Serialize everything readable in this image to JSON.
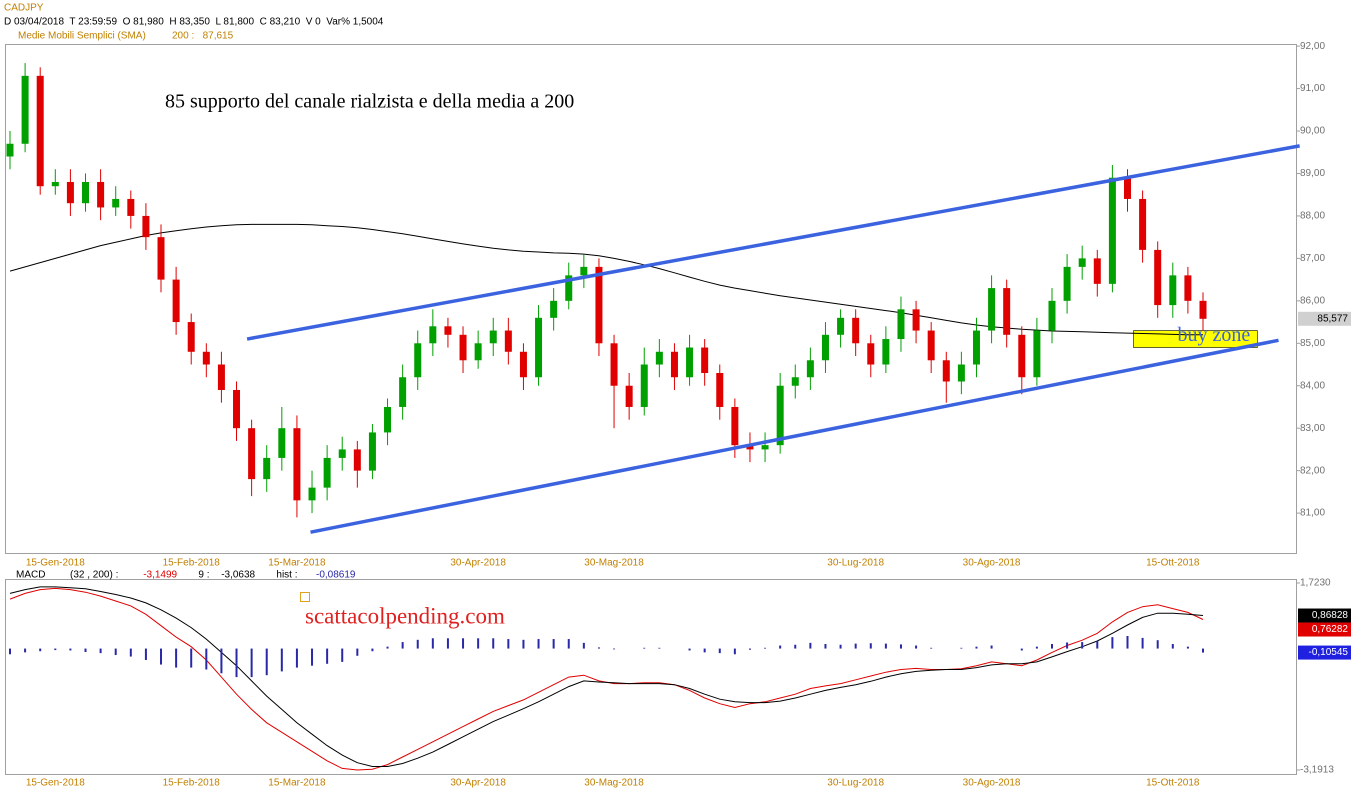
{
  "chart_data": [
    {
      "type": "candlestick",
      "symbol": "CADJPY",
      "info": "D 03/04/2018  T 23:59:59  O 81,980  H 83,350  L 81,800  C 83,210  V 0  Var% 1,5004",
      "annotation": "85 supporto del canale rialzista e della media a 200",
      "watermark": "scattacolpending.com",
      "categories": [
        null,
        null,
        null,
        "15-Gen-2018",
        null,
        null,
        null,
        null,
        null,
        null,
        null,
        null,
        "15-Feb-2018",
        null,
        null,
        null,
        null,
        null,
        null,
        "15-Mar-2018",
        null,
        null,
        null,
        null,
        null,
        null,
        null,
        null,
        null,
        null,
        null,
        "30-Apr-2018",
        null,
        null,
        null,
        null,
        null,
        null,
        null,
        null,
        "30-Mag-2018",
        null,
        null,
        null,
        null,
        null,
        null,
        null,
        null,
        null,
        null,
        null,
        null,
        null,
        null,
        null,
        "30-Lug-2018",
        null,
        null,
        null,
        null,
        null,
        null,
        null,
        null,
        "30-Ago-2018",
        null,
        null,
        null,
        null,
        null,
        null,
        null,
        null,
        null,
        null,
        null,
        "15-Ott-2018",
        null,
        null
      ],
      "open": [
        89.4,
        89.7,
        91.3,
        88.7,
        88.8,
        88.3,
        88.8,
        88.2,
        88.4,
        88.0,
        87.5,
        86.5,
        85.5,
        84.8,
        84.5,
        83.9,
        83.0,
        81.8,
        82.3,
        83.0,
        81.3,
        81.6,
        82.3,
        82.5,
        82.0,
        82.9,
        83.5,
        84.2,
        85.0,
        85.4,
        85.2,
        84.6,
        85.0,
        85.3,
        84.8,
        84.2,
        85.6,
        86.0,
        86.6,
        86.8,
        85.0,
        84.0,
        83.5,
        84.5,
        84.8,
        84.2,
        84.9,
        84.3,
        83.5,
        82.6,
        82.5,
        82.6,
        84.0,
        84.2,
        84.6,
        85.2,
        85.6,
        85.0,
        84.5,
        85.1,
        85.8,
        85.3,
        84.6,
        84.1,
        84.5,
        85.3,
        86.3,
        85.2,
        84.2,
        85.3,
        86.0,
        86.8,
        87.0,
        86.4,
        88.9,
        88.4,
        87.2,
        85.9,
        86.6,
        86.0
      ],
      "high": [
        90.0,
        91.6,
        91.5,
        89.1,
        89.1,
        89.0,
        89.1,
        88.7,
        88.6,
        88.3,
        87.8,
        86.8,
        85.7,
        85.0,
        84.8,
        84.1,
        83.2,
        82.6,
        83.5,
        83.3,
        82.0,
        82.6,
        82.8,
        82.7,
        83.1,
        83.7,
        84.5,
        85.3,
        85.8,
        85.6,
        85.4,
        85.3,
        85.6,
        85.6,
        85.0,
        85.9,
        86.3,
        86.9,
        87.1,
        87.0,
        85.2,
        84.3,
        84.9,
        85.1,
        85.0,
        85.2,
        85.1,
        84.5,
        83.7,
        82.9,
        82.9,
        84.3,
        84.5,
        84.9,
        85.5,
        85.8,
        85.8,
        85.2,
        85.4,
        86.1,
        86.0,
        85.5,
        84.8,
        84.8,
        85.6,
        86.6,
        86.5,
        85.4,
        85.6,
        86.3,
        87.1,
        87.3,
        87.2,
        89.2,
        89.1,
        88.6,
        87.4,
        86.9,
        86.8,
        86.2
      ],
      "low": [
        89.1,
        89.5,
        88.5,
        88.5,
        88.0,
        88.1,
        87.9,
        88.0,
        87.7,
        87.2,
        86.2,
        85.2,
        84.5,
        84.2,
        83.6,
        82.7,
        81.4,
        81.5,
        82.0,
        80.9,
        81.0,
        81.3,
        82.0,
        81.6,
        81.8,
        82.6,
        83.2,
        83.9,
        84.7,
        84.9,
        84.3,
        84.4,
        84.7,
        84.5,
        83.9,
        84.0,
        85.3,
        85.8,
        86.3,
        84.7,
        83.0,
        83.2,
        83.3,
        84.2,
        83.9,
        84.0,
        84.0,
        83.2,
        82.3,
        82.2,
        82.2,
        82.4,
        83.7,
        83.9,
        84.3,
        84.9,
        84.7,
        84.2,
        84.3,
        84.8,
        85.0,
        84.3,
        83.6,
        83.8,
        84.2,
        85.0,
        84.9,
        83.8,
        84.0,
        85.0,
        85.7,
        86.5,
        86.1,
        86.2,
        88.1,
        86.9,
        85.6,
        85.6,
        85.7,
        85.3
      ],
      "close": [
        89.7,
        91.3,
        88.7,
        88.8,
        88.3,
        88.8,
        88.2,
        88.4,
        88.0,
        87.5,
        86.5,
        85.5,
        84.8,
        84.5,
        83.9,
        83.0,
        81.8,
        82.3,
        83.0,
        81.3,
        81.6,
        82.3,
        82.5,
        82.0,
        82.9,
        83.5,
        84.2,
        85.0,
        85.4,
        85.2,
        84.6,
        85.0,
        85.3,
        84.8,
        84.2,
        85.6,
        86.0,
        86.6,
        86.8,
        85.0,
        84.0,
        83.5,
        84.5,
        84.8,
        84.2,
        84.9,
        84.3,
        83.5,
        82.6,
        82.5,
        82.6,
        84.0,
        84.2,
        84.6,
        85.2,
        85.6,
        85.0,
        84.5,
        85.1,
        85.8,
        85.3,
        84.6,
        84.1,
        84.5,
        85.3,
        86.3,
        85.2,
        84.2,
        85.3,
        86.0,
        86.8,
        87.0,
        86.4,
        88.9,
        88.4,
        87.2,
        85.9,
        86.6,
        86.0,
        85.577
      ],
      "last_label": "85,577",
      "up_color": "#00a000",
      "down_color": "#e00000",
      "overlays": [
        {
          "name": "Medie Mobili Semplici (SMA)",
          "reading": "200 :   87,615",
          "color": "#000000",
          "values": [
            86.7,
            86.8,
            86.9,
            87.0,
            87.1,
            87.2,
            87.3,
            87.38,
            87.46,
            87.54,
            87.6,
            87.65,
            87.7,
            87.74,
            87.77,
            87.79,
            87.8,
            87.8,
            87.8,
            87.8,
            87.79,
            87.77,
            87.75,
            87.72,
            87.68,
            87.63,
            87.58,
            87.52,
            87.46,
            87.4,
            87.34,
            87.29,
            87.24,
            87.2,
            87.17,
            87.15,
            87.13,
            87.12,
            87.1,
            87.06,
            87.0,
            86.93,
            86.85,
            86.76,
            86.66,
            86.56,
            86.46,
            86.37,
            86.3,
            86.24,
            86.18,
            86.12,
            86.07,
            86.02,
            85.97,
            85.92,
            85.87,
            85.82,
            85.77,
            85.72,
            85.66,
            85.6,
            85.54,
            85.48,
            85.43,
            85.39,
            85.36,
            85.33,
            85.31,
            85.29,
            85.28,
            85.27,
            85.26,
            85.25,
            85.24,
            85.23,
            85.22,
            85.21,
            85.2,
            85.2
          ]
        }
      ],
      "trendlines": [
        {
          "color": "#3b63e0",
          "x": [
            15.7,
            85.4
          ],
          "y": [
            85.1,
            89.65
          ]
        },
        {
          "color": "#3b63e0",
          "x": [
            19.9,
            84.0
          ],
          "y": [
            80.55,
            85.07
          ]
        }
      ],
      "zone": {
        "label": "buy zone",
        "color": "#ffff00",
        "x": [
          74.4,
          82.6
        ],
        "y": [
          84.9,
          85.3
        ]
      },
      "ylim": [
        80.06,
        92.05
      ],
      "yticks": [
        {
          "value": 81,
          "label": "81,00"
        },
        {
          "value": 82,
          "label": "82,00"
        },
        {
          "value": 83,
          "label": "83,00"
        },
        {
          "value": 84,
          "label": "84,00"
        },
        {
          "value": 85,
          "label": "85,00"
        },
        {
          "value": 86,
          "label": "86,00"
        },
        {
          "value": 87,
          "label": "87,00"
        },
        {
          "value": 88,
          "label": "88,00"
        },
        {
          "value": 89,
          "label": "89,00"
        },
        {
          "value": 90,
          "label": "90,00"
        },
        {
          "value": 91,
          "label": "91,00"
        },
        {
          "value": 92,
          "label": "92,00"
        }
      ]
    },
    {
      "type": "line",
      "title": "MACD",
      "series": [
        {
          "name": "(32 , 200) :",
          "reading": "-3,1499",
          "color": "#e00000",
          "last_label": "0,76282",
          "values": [
            1.3,
            1.45,
            1.55,
            1.58,
            1.55,
            1.48,
            1.38,
            1.25,
            1.12,
            0.9,
            0.6,
            0.3,
            0.05,
            -0.3,
            -0.75,
            -1.2,
            -1.6,
            -1.95,
            -2.2,
            -2.45,
            -2.7,
            -2.95,
            -3.15,
            -3.19,
            -3.17,
            -3.05,
            -2.85,
            -2.65,
            -2.45,
            -2.25,
            -2.05,
            -1.85,
            -1.65,
            -1.5,
            -1.35,
            -1.15,
            -0.95,
            -0.75,
            -0.7,
            -0.85,
            -0.92,
            -0.92,
            -0.9,
            -0.9,
            -0.95,
            -1.1,
            -1.3,
            -1.45,
            -1.55,
            -1.45,
            -1.4,
            -1.3,
            -1.2,
            -1.05,
            -0.98,
            -0.92,
            -0.82,
            -0.72,
            -0.62,
            -0.55,
            -0.52,
            -0.55,
            -0.55,
            -0.53,
            -0.45,
            -0.35,
            -0.4,
            -0.45,
            -0.3,
            -0.1,
            0.08,
            0.22,
            0.4,
            0.7,
            0.95,
            1.1,
            1.15,
            1.05,
            0.95,
            0.76282
          ]
        },
        {
          "name": "9 :",
          "reading": "-3,0638",
          "color": "#000000",
          "last_label": "0,86828",
          "values": [
            1.45,
            1.55,
            1.62,
            1.62,
            1.6,
            1.57,
            1.5,
            1.42,
            1.33,
            1.2,
            1.02,
            0.8,
            0.55,
            0.25,
            -0.1,
            -0.45,
            -0.85,
            -1.25,
            -1.6,
            -1.95,
            -2.25,
            -2.55,
            -2.8,
            -3.0,
            -3.1,
            -3.1,
            -3.02,
            -2.88,
            -2.72,
            -2.52,
            -2.32,
            -2.12,
            -1.92,
            -1.75,
            -1.58,
            -1.4,
            -1.2,
            -1.0,
            -0.85,
            -0.88,
            -0.9,
            -0.92,
            -0.92,
            -0.92,
            -0.95,
            -1.05,
            -1.2,
            -1.33,
            -1.4,
            -1.42,
            -1.42,
            -1.38,
            -1.3,
            -1.2,
            -1.1,
            -1.02,
            -0.95,
            -0.86,
            -0.75,
            -0.66,
            -0.6,
            -0.57,
            -0.55,
            -0.55,
            -0.5,
            -0.43,
            -0.4,
            -0.4,
            -0.35,
            -0.22,
            -0.08,
            0.05,
            0.2,
            0.4,
            0.62,
            0.82,
            0.93,
            0.93,
            0.9,
            0.86828
          ]
        },
        {
          "name": "hist :",
          "reading": "-0,08619",
          "color": "#2828a8",
          "kind": "bar",
          "last_label": "-0,10545",
          "values": [
            -0.15,
            -0.1,
            -0.07,
            -0.04,
            -0.05,
            -0.09,
            -0.12,
            -0.17,
            -0.21,
            -0.3,
            -0.42,
            -0.5,
            -0.5,
            -0.55,
            -0.65,
            -0.75,
            -0.75,
            -0.7,
            -0.6,
            -0.5,
            -0.45,
            -0.4,
            -0.35,
            -0.19,
            -0.07,
            0.05,
            0.17,
            0.23,
            0.27,
            0.27,
            0.27,
            0.27,
            0.27,
            0.25,
            0.23,
            0.25,
            0.25,
            0.25,
            0.15,
            0.03,
            -0.02,
            0.0,
            0.02,
            0.02,
            0.0,
            -0.05,
            -0.1,
            -0.12,
            -0.15,
            -0.03,
            0.02,
            0.08,
            0.1,
            0.15,
            0.12,
            0.1,
            0.13,
            0.14,
            0.13,
            0.11,
            0.08,
            0.02,
            0.0,
            0.02,
            0.05,
            0.08,
            0.0,
            -0.05,
            0.05,
            0.12,
            0.16,
            0.17,
            0.2,
            0.3,
            0.33,
            0.28,
            0.22,
            0.12,
            0.05,
            -0.10545
          ]
        }
      ],
      "ylim": [
        -3.1913,
        1.723
      ],
      "yticks": [
        {
          "value": 1.723,
          "label": "1,7230"
        },
        {
          "value": -3.1913,
          "label": "-3,1913"
        }
      ]
    }
  ]
}
